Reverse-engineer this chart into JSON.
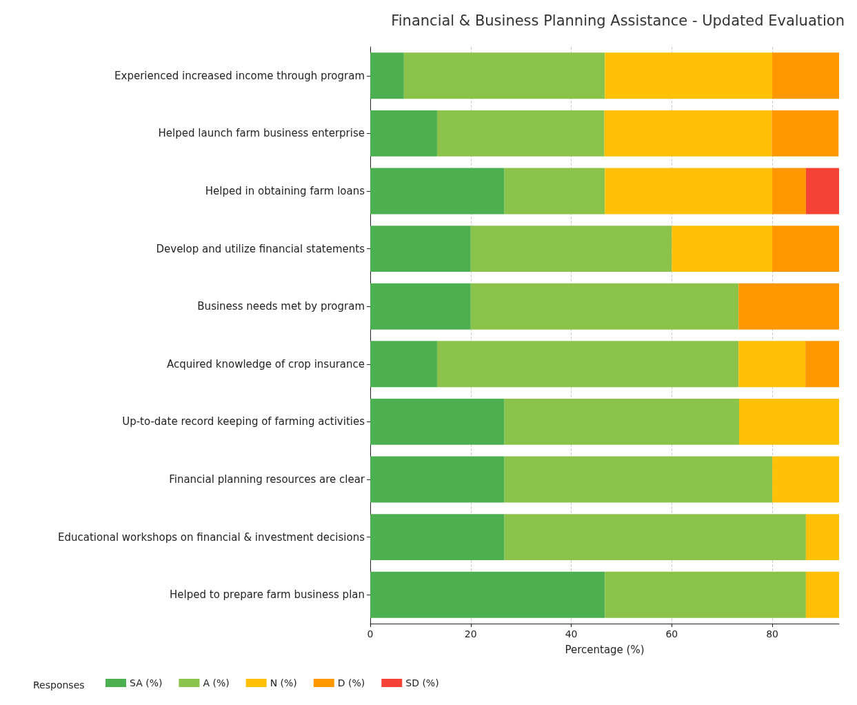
{
  "chart_data": {
    "type": "bar",
    "orientation": "horizontal",
    "stacked": true,
    "title": "Financial & Business Planning Assistance - Updated Evaluation",
    "xlabel": "Percentage (%)",
    "legend_title": "Responses",
    "legend": "bottom left",
    "grid": "x",
    "categories": [
      "Experienced increased income through program",
      "Helped launch farm business enterprise",
      "Helped in obtaining farm loans",
      "Develop and utilize financial statements",
      "Business needs met by program",
      "Acquired knowledge of crop insurance",
      "Up-to-date record keeping of farming activities",
      "Financial planning resources are clear",
      "Educational workshops on financial & investment decisions",
      "Helped to prepare farm business plan"
    ],
    "xlim": [
      0,
      93.3
    ],
    "xticks": [
      0,
      20,
      40,
      60,
      80
    ],
    "series": [
      {
        "name": "SA (%)",
        "color": "#4caf50",
        "values": [
          6.7,
          13.3,
          26.7,
          20,
          20,
          13.3,
          26.7,
          26.7,
          26.7,
          46.7
        ]
      },
      {
        "name": "A (%)",
        "color": "#8bc34a",
        "values": [
          40,
          33.3,
          20,
          40,
          53.3,
          60,
          46.7,
          53.3,
          60,
          40
        ]
      },
      {
        "name": "N (%)",
        "color": "#ffc107",
        "values": [
          33.3,
          33.3,
          33.3,
          20,
          null,
          13.3,
          20,
          13.3,
          6.7,
          6.7
        ]
      },
      {
        "name": "D (%)",
        "color": "#ff9800",
        "values": [
          13.3,
          13.3,
          6.7,
          13.3,
          20,
          6.7,
          null,
          null,
          null,
          null
        ]
      },
      {
        "name": "SD (%)",
        "color": "#f44336",
        "values": [
          null,
          null,
          6.7,
          null,
          null,
          null,
          null,
          null,
          null,
          null
        ]
      }
    ]
  }
}
